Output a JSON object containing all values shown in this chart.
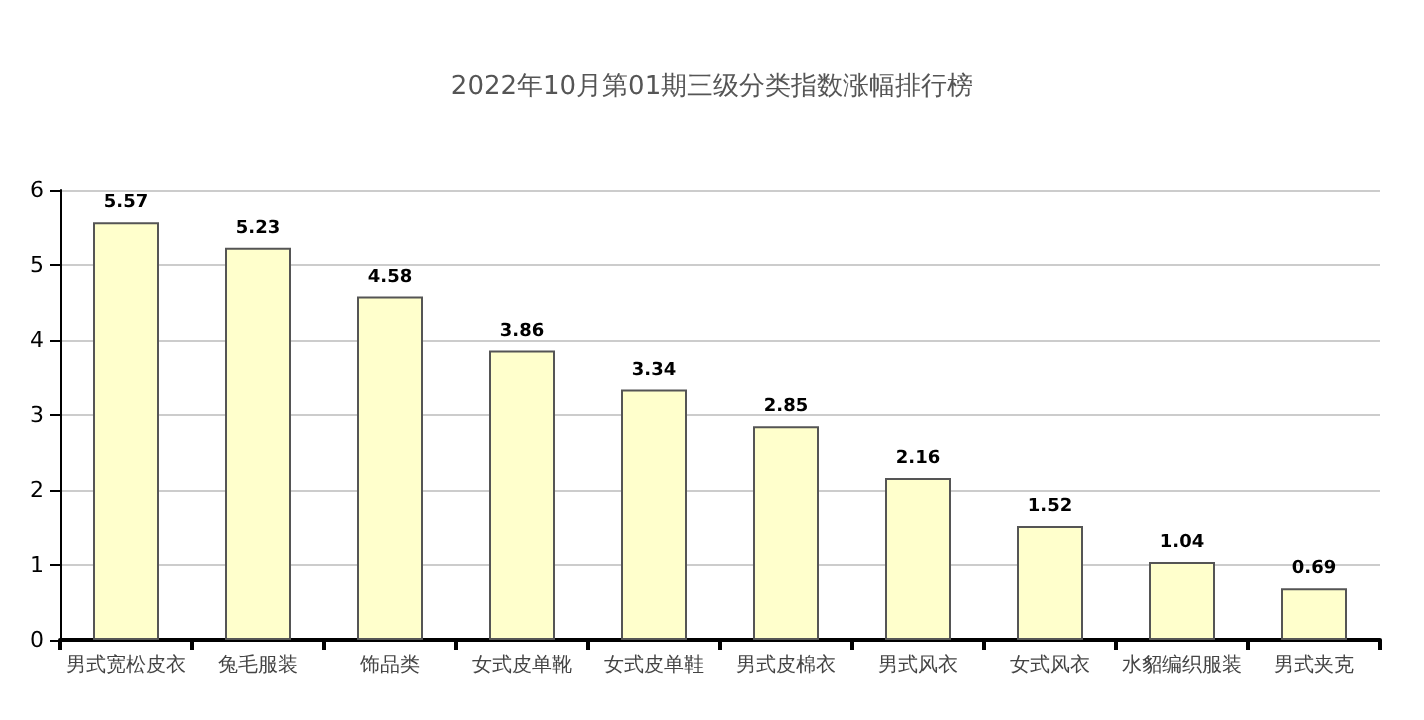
{
  "chart_data": {
    "type": "bar",
    "title": "2022年10月第01期三级分类指数涨幅排行榜",
    "categories": [
      "男式宽松皮衣",
      "兔毛服装",
      "饰品类",
      "女式皮单靴",
      "女式皮单鞋",
      "男式皮棉衣",
      "男式风衣",
      "女式风衣",
      "水貂编织服装",
      "男式夹克"
    ],
    "values": [
      5.57,
      5.23,
      4.58,
      3.86,
      3.34,
      2.85,
      2.16,
      1.52,
      1.04,
      0.69
    ],
    "color": "#ffffcc",
    "data_labels": true,
    "grid": "y",
    "ylim": [
      0,
      6
    ],
    "yticks": [
      0,
      1,
      2,
      3,
      4,
      5,
      6
    ]
  }
}
